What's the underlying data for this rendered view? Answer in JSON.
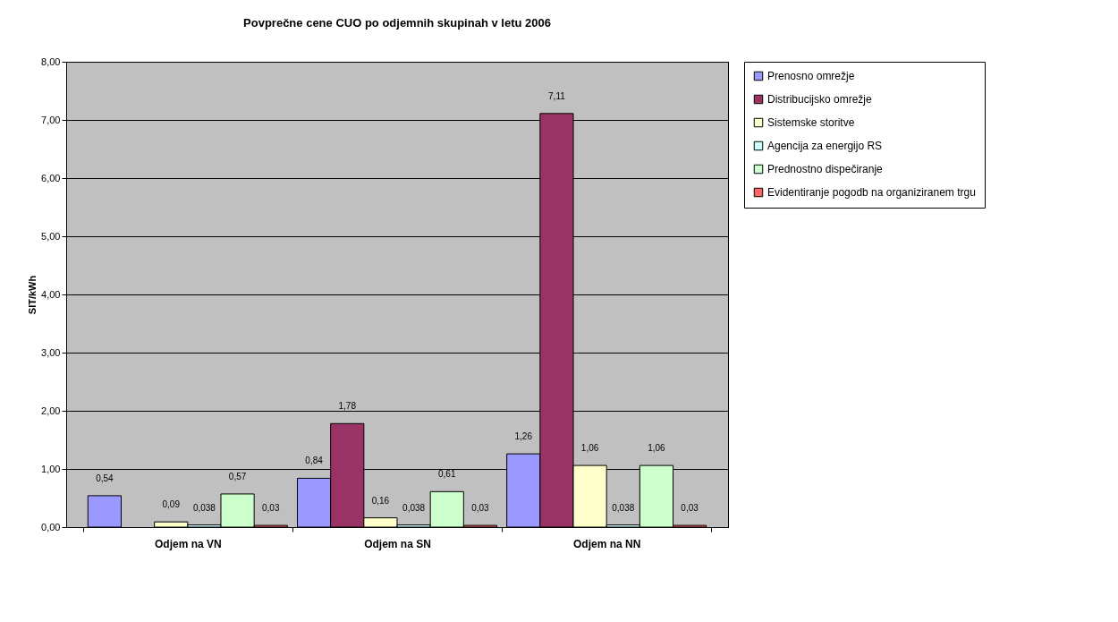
{
  "chart_data": {
    "type": "bar",
    "title": "Povprečne cene CUO po odjemnih skupinah v letu 2006",
    "ylabel": "SIT/kWh",
    "categories": [
      "Odjem na VN",
      "Odjem na SN",
      "Odjem na NN"
    ],
    "series": [
      {
        "name": "Prenosno omrežje",
        "color": "#9999ff",
        "values": [
          0.54,
          0.84,
          1.26
        ],
        "value_labels": [
          "0,54",
          "0,84",
          "1,26"
        ]
      },
      {
        "name": "Distribucijsko omrežje",
        "color": "#993366",
        "values": [
          null,
          1.78,
          7.11
        ],
        "value_labels": [
          null,
          "1,78",
          "7,11"
        ]
      },
      {
        "name": "Sistemske storitve",
        "color": "#ffffcc",
        "values": [
          0.09,
          0.16,
          1.06
        ],
        "value_labels": [
          "0,09",
          "0,16",
          "1,06"
        ]
      },
      {
        "name": "Agencija za energijo RS",
        "color": "#ccffff",
        "values": [
          0.038,
          0.038,
          0.038
        ],
        "value_labels": [
          "0,038",
          "0,038",
          "0,038"
        ]
      },
      {
        "name": "Prednostno dispečiranje",
        "color": "#ccffcc",
        "values": [
          0.57,
          0.61,
          1.06
        ],
        "value_labels": [
          "0,57",
          "0,61",
          "1,06"
        ]
      },
      {
        "name": "Evidentiranje pogodb na organiziranem trgu",
        "color": "#ff6666",
        "values": [
          0.03,
          0.03,
          0.03
        ],
        "value_labels": [
          "0,03",
          "0,03",
          "0,03"
        ]
      }
    ],
    "ylim": [
      0,
      8
    ],
    "yticks": [
      {
        "value": 0,
        "label": "0,00"
      },
      {
        "value": 1,
        "label": "1,00"
      },
      {
        "value": 2,
        "label": "2,00"
      },
      {
        "value": 3,
        "label": "3,00"
      },
      {
        "value": 4,
        "label": "4,00"
      },
      {
        "value": 5,
        "label": "5,00"
      },
      {
        "value": 6,
        "label": "6,00"
      },
      {
        "value": 7,
        "label": "7,00"
      },
      {
        "value": 8,
        "label": "8,00"
      }
    ],
    "grid": "y",
    "legend": "right"
  }
}
